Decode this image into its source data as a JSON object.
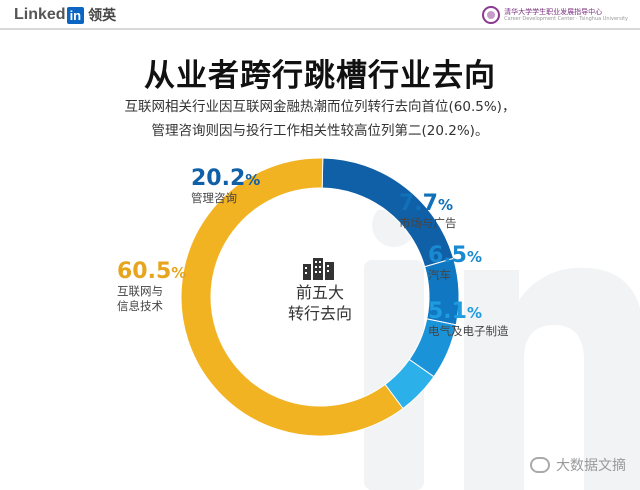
{
  "header": {
    "brand_latin": "Linked",
    "brand_in": "in",
    "brand_cn": "领英",
    "partner_name": "清华大学学生职业发展指导中心",
    "partner_sub": "Career Development Center · Tsinghua University"
  },
  "title": "从业者跨行跳槽行业去向",
  "subtitle_lines": [
    "互联网相关行业因互联网金融热潮而位列转行去向首位(60.5%)，",
    "管理咨询则因与投行工作相关性较高位列第二(20.2%)。"
  ],
  "center": {
    "line1": "前五大",
    "line2": "转行去向",
    "icon": "buildings-icon"
  },
  "chart_data": {
    "type": "pie",
    "subtype": "donut",
    "unit": "%",
    "slices": [
      {
        "name": "管理咨询",
        "value": 20.2,
        "label": "20.2",
        "color": "#1060a8"
      },
      {
        "name": "市场与广告",
        "value": 7.7,
        "label": "7.7",
        "color": "#1078c2"
      },
      {
        "name": "汽车",
        "value": 6.5,
        "label": "6.5",
        "color": "#1b93d8"
      },
      {
        "name": "电气及电子制造",
        "value": 5.1,
        "label": "5.1",
        "color": "#2bb0ea"
      },
      {
        "name": "互联网与信息技术",
        "value": 60.5,
        "label": "60.5",
        "color": "#f2b322"
      }
    ]
  },
  "labels": {
    "consulting": {
      "value": "20.2",
      "unit": "%",
      "name_lines": [
        "管理咨询"
      ],
      "color": "#1060a8"
    },
    "marketing": {
      "value": "7.7",
      "unit": "%",
      "name_lines": [
        "市场与广告"
      ],
      "color": "#1070b8"
    },
    "auto": {
      "value": "6.5",
      "unit": "%",
      "name_lines": [
        "汽车"
      ],
      "color": "#1a8ad0"
    },
    "electric": {
      "value": "5.1",
      "unit": "%",
      "name_lines": [
        "电气及电子制造"
      ],
      "color": "#1f9be0"
    },
    "internet": {
      "value": "60.5",
      "unit": "%",
      "name_lines": [
        "互联网与",
        "信息技术"
      ],
      "color": "#e6a51c"
    }
  },
  "watermark": {
    "text": "大数据文摘",
    "icon": "wechat-icon"
  }
}
